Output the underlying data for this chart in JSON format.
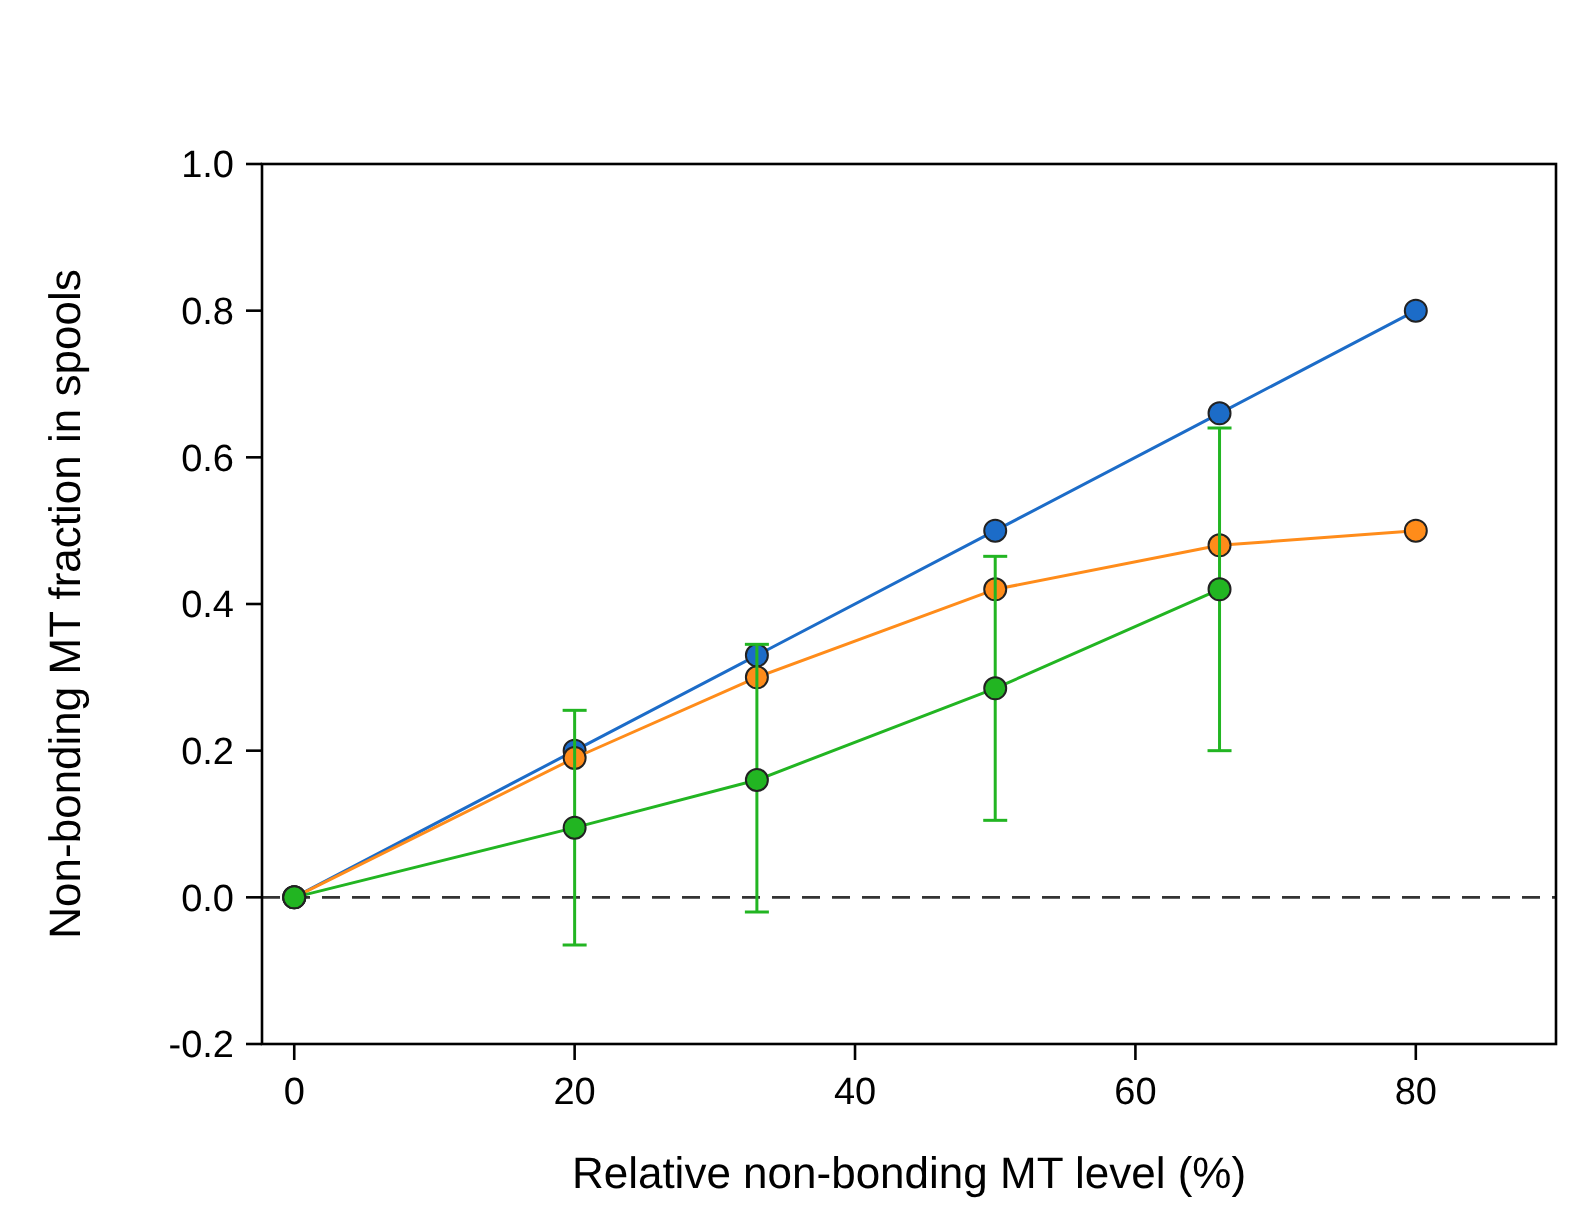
{
  "chart_data": {
    "type": "line",
    "xlabel": "Relative non-bonding MT level (%)",
    "ylabel": "Non-bonding MT fraction in spools",
    "x": [
      0,
      20,
      33,
      50,
      66,
      80
    ],
    "series": [
      {
        "color": "#1c6cc8",
        "values": [
          0,
          0.2,
          0.33,
          0.5,
          0.66,
          0.8
        ]
      },
      {
        "color": "#ff8c1a",
        "values": [
          0,
          0.19,
          0.3,
          0.42,
          0.48,
          0.5
        ]
      },
      {
        "color": "#22b522",
        "x": [
          0,
          20,
          33,
          50,
          66
        ],
        "values": [
          0,
          0.095,
          0.16,
          0.285,
          0.42
        ],
        "errors": [
          null,
          [
            -0.065,
            0.255
          ],
          [
            -0.02,
            0.345
          ],
          [
            0.105,
            0.465
          ],
          [
            0.2,
            0.64
          ]
        ]
      }
    ],
    "xlim": [
      -2.3,
      90
    ],
    "ylim": [
      -0.2,
      1.0
    ],
    "xticks": [
      0,
      20,
      40,
      60,
      80
    ],
    "yticks": [
      {
        "value": -0.2,
        "label": "-0.2"
      },
      {
        "value": 0,
        "label": "0.0"
      },
      {
        "value": 0.2,
        "label": "0.2"
      },
      {
        "value": 0.4,
        "label": "0.4"
      },
      {
        "value": 0.6,
        "label": "0.6"
      },
      {
        "value": 0.8,
        "label": "0.8"
      },
      {
        "value": 1,
        "label": "1.0"
      }
    ],
    "ref_lines": [
      {
        "axis": "y",
        "value": 0,
        "color": "#333333",
        "line_style": "dashed"
      }
    ],
    "marker": "circle",
    "line_style": "solid",
    "grid": false
  }
}
